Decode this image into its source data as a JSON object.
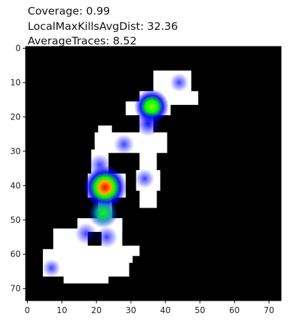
{
  "chart_data": {
    "type": "heatmap",
    "title_lines": [
      "Coverage: 0.99",
      "LocalMaxKillsAvgDist: 32.36",
      "AverageTraces: 8.52"
    ],
    "xlabel": "",
    "ylabel": "",
    "xlim": [
      -0.5,
      73.5
    ],
    "ylim": [
      73.5,
      -0.5
    ],
    "x_ticks": [
      0,
      10,
      20,
      30,
      40,
      50,
      60,
      70
    ],
    "y_ticks": [
      0,
      10,
      20,
      30,
      40,
      50,
      60,
      70
    ],
    "grid": false,
    "background_color": "#000000",
    "colormap": [
      "#ffffff",
      "#0000ff",
      "#00ff00",
      "#ff0000"
    ],
    "explored_regions": [
      {
        "x0": 37,
        "y0": 7,
        "x1": 47,
        "y1": 14
      },
      {
        "x0": 33,
        "y0": 13,
        "x1": 49,
        "y1": 16
      },
      {
        "x0": 29,
        "y0": 16,
        "x1": 41,
        "y1": 19
      },
      {
        "x0": 33,
        "y0": 16,
        "x1": 36,
        "y1": 27
      },
      {
        "x0": 21,
        "y0": 23,
        "x1": 24,
        "y1": 27
      },
      {
        "x0": 20,
        "y0": 25,
        "x1": 40,
        "y1": 30
      },
      {
        "x0": 19,
        "y0": 30,
        "x1": 23,
        "y1": 38
      },
      {
        "x0": 33,
        "y0": 30,
        "x1": 37,
        "y1": 35
      },
      {
        "x0": 33,
        "y0": 35,
        "x1": 37,
        "y1": 46
      },
      {
        "x0": 32,
        "y0": 36,
        "x1": 38,
        "y1": 41
      },
      {
        "x0": 18,
        "y0": 37,
        "x1": 28,
        "y1": 43
      },
      {
        "x0": 21,
        "y0": 43,
        "x1": 24,
        "y1": 51
      },
      {
        "x0": 15,
        "y0": 50,
        "x1": 27,
        "y1": 53
      },
      {
        "x0": 8,
        "y0": 53,
        "x1": 17,
        "y1": 60
      },
      {
        "x0": 22,
        "y0": 50,
        "x1": 27,
        "y1": 58
      },
      {
        "x0": 16,
        "y0": 58,
        "x1": 30,
        "y1": 62
      },
      {
        "x0": 30,
        "y0": 58,
        "x1": 32,
        "y1": 60
      },
      {
        "x0": 5,
        "y0": 59,
        "x1": 29,
        "y1": 66
      },
      {
        "x0": 11,
        "y0": 62,
        "x1": 23,
        "y1": 68
      }
    ],
    "hotspots": [
      {
        "x": 22.5,
        "y": 40.5,
        "value": 1.0
      },
      {
        "x": 36,
        "y": 17,
        "value": 0.72
      },
      {
        "x": 22,
        "y": 48,
        "value": 0.55
      },
      {
        "x": 35,
        "y": 22,
        "value": 0.4
      },
      {
        "x": 17,
        "y": 54,
        "value": 0.3
      },
      {
        "x": 23,
        "y": 55,
        "value": 0.3
      },
      {
        "x": 21,
        "y": 34,
        "value": 0.3
      },
      {
        "x": 28,
        "y": 28,
        "value": 0.25
      },
      {
        "x": 34,
        "y": 38,
        "value": 0.22
      },
      {
        "x": 44,
        "y": 10,
        "value": 0.2
      },
      {
        "x": 7,
        "y": 64,
        "value": 0.18
      }
    ]
  }
}
